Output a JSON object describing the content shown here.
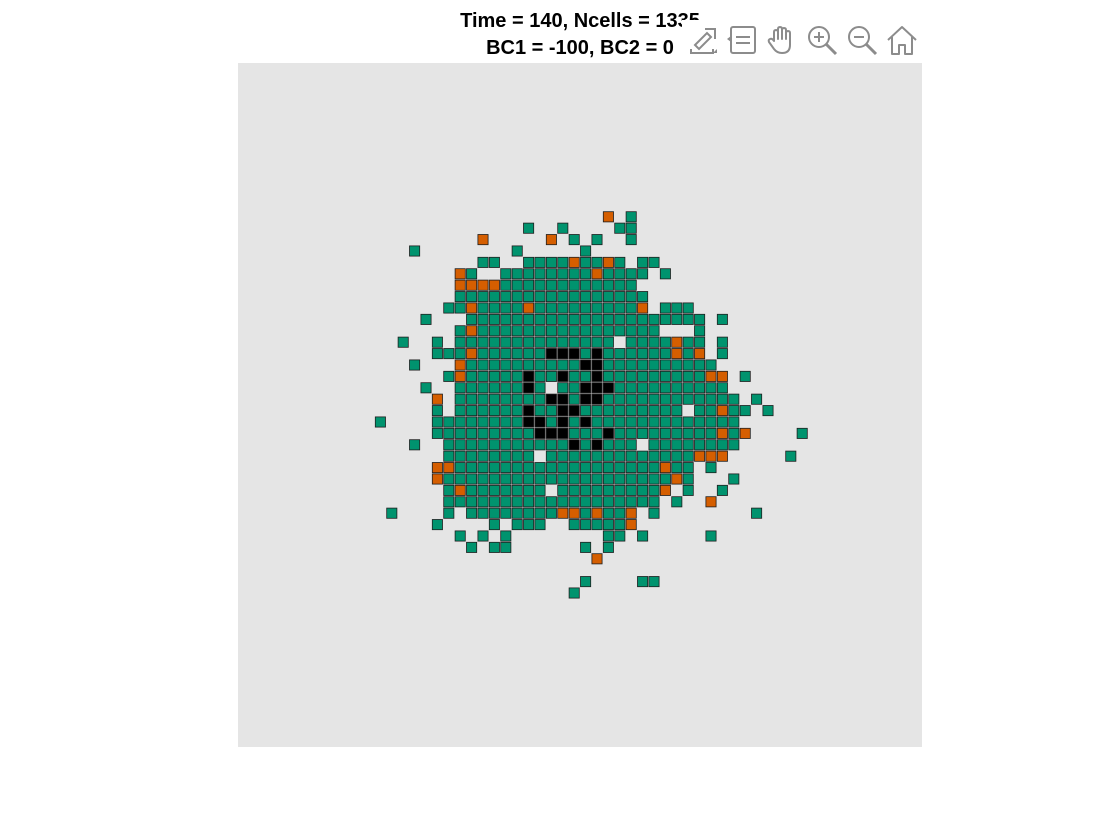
{
  "figure": {
    "title_line1": "Time = 140, Ncells = 1335",
    "title_line2": "BC1 = -100, BC2 = 0"
  },
  "toolbar": {
    "icons": [
      "export-icon",
      "datatips-icon",
      "pan-icon",
      "zoom-in-icon",
      "zoom-out-icon",
      "home-icon"
    ]
  },
  "colors": {
    "axes_background": "#e5e5e5",
    "healthy": "#00936e",
    "mutant": "#d55e00",
    "dead": "#000000",
    "edge": "#1f1f1f",
    "toolbar_icon": "#8c8c8c"
  },
  "grid": {
    "size": 60,
    "center": [
      29,
      29
    ],
    "radius": 13,
    "ncells": 1335,
    "black_fraction": 0.07,
    "orange_fraction": 0.02
  }
}
